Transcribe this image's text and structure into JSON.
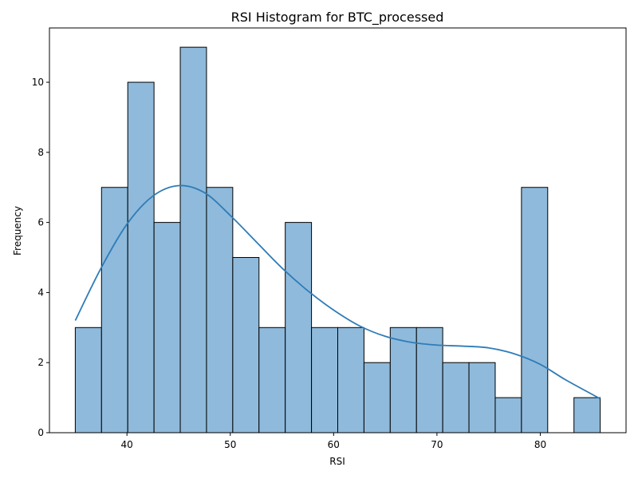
{
  "chart_data": {
    "type": "histogram",
    "title": "RSI Histogram for BTC_processed",
    "xlabel": "RSI",
    "ylabel": "Frequency",
    "xlim": [
      32.5,
      88.3
    ],
    "ylim": [
      0,
      11.55
    ],
    "xticks": [
      40,
      50,
      60,
      70,
      80
    ],
    "yticks": [
      0,
      2,
      4,
      6,
      8,
      10
    ],
    "bins": [
      {
        "start": 35.0,
        "end": 37.54,
        "count": 3
      },
      {
        "start": 37.54,
        "end": 40.08,
        "count": 7
      },
      {
        "start": 40.08,
        "end": 42.62,
        "count": 10
      },
      {
        "start": 42.62,
        "end": 45.16,
        "count": 6
      },
      {
        "start": 45.16,
        "end": 47.7,
        "count": 11
      },
      {
        "start": 47.7,
        "end": 50.24,
        "count": 7
      },
      {
        "start": 50.24,
        "end": 52.78,
        "count": 5
      },
      {
        "start": 52.78,
        "end": 55.32,
        "count": 3
      },
      {
        "start": 55.32,
        "end": 57.86,
        "count": 6
      },
      {
        "start": 57.86,
        "end": 60.4,
        "count": 3
      },
      {
        "start": 60.4,
        "end": 62.94,
        "count": 3
      },
      {
        "start": 62.94,
        "end": 65.48,
        "count": 2
      },
      {
        "start": 65.48,
        "end": 68.02,
        "count": 3
      },
      {
        "start": 68.02,
        "end": 70.56,
        "count": 3
      },
      {
        "start": 70.56,
        "end": 73.1,
        "count": 2
      },
      {
        "start": 73.1,
        "end": 75.64,
        "count": 2
      },
      {
        "start": 75.64,
        "end": 78.18,
        "count": 1
      },
      {
        "start": 78.18,
        "end": 80.72,
        "count": 7
      },
      {
        "start": 80.72,
        "end": 83.26,
        "count": 0
      },
      {
        "start": 83.26,
        "end": 85.8,
        "count": 1
      }
    ],
    "kde": {
      "x": [
        35.0,
        37.5,
        40.0,
        42.5,
        45.0,
        47.5,
        50.0,
        52.5,
        55.0,
        57.5,
        60.0,
        62.5,
        65.0,
        67.5,
        70.0,
        72.5,
        75.0,
        77.5,
        80.0,
        82.5,
        85.8
      ],
      "y": [
        3.2,
        4.7,
        5.95,
        6.75,
        7.05,
        6.85,
        6.2,
        5.45,
        4.7,
        4.05,
        3.5,
        3.05,
        2.75,
        2.58,
        2.5,
        2.47,
        2.42,
        2.25,
        1.95,
        1.5,
        0.97
      ]
    },
    "colors": {
      "bar_fill": "#8fbadb",
      "bar_edge": "#000000",
      "kde_line": "#2f7cb8"
    }
  }
}
